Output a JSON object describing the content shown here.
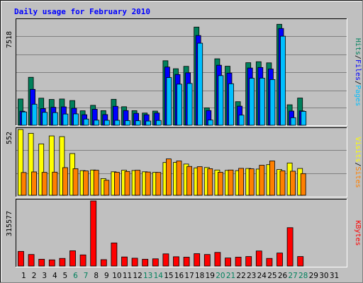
{
  "chart_data": {
    "type": "bar",
    "title": "Daily usage for February 2010",
    "x": [
      "1",
      "2",
      "3",
      "4",
      "5",
      "6",
      "7",
      "8",
      "9",
      "10",
      "11",
      "12",
      "13",
      "14",
      "15",
      "16",
      "17",
      "18",
      "19",
      "20",
      "21",
      "22",
      "23",
      "24",
      "25",
      "26",
      "27",
      "28",
      "29",
      "30",
      "31"
    ],
    "weekend_days": [
      "6",
      "7",
      "13",
      "14",
      "20",
      "21",
      "27",
      "28"
    ],
    "panels": [
      {
        "id": "top",
        "max_label": "7518",
        "ylim": [
          0,
          7518
        ],
        "legend": [
          "Pages",
          "/",
          "Files",
          "/",
          "Hits"
        ],
        "series": [
          {
            "name": "Hits",
            "color": "#00805c",
            "values": [
              1870,
              3420,
              1930,
              1840,
              1870,
              1760,
              1030,
              1420,
              1040,
              1850,
              1320,
              1040,
              870,
              1010,
              4600,
              4030,
              4200,
              7000,
              1240,
              4740,
              4210,
              1680,
              4460,
              4530,
              4450,
              7200,
              1460,
              1940,
              0,
              0,
              0
            ]
          },
          {
            "name": "Files",
            "color": "#0000ff",
            "values": [
              1000,
              2560,
              1190,
              1280,
              1310,
              1210,
              750,
              1140,
              760,
              1350,
              1050,
              850,
              750,
              870,
              4150,
              3620,
              3740,
              6400,
              1050,
              4280,
              3720,
              1360,
              4080,
              4120,
              4010,
              6900,
              1010,
              1020,
              0,
              0,
              0
            ]
          },
          {
            "name": "Pages",
            "color": "#00bfff",
            "values": [
              950,
              1500,
              920,
              900,
              800,
              810,
              440,
              360,
              350,
              350,
              330,
              320,
              300,
              340,
              3400,
              2930,
              2980,
              5850,
              370,
              3540,
              2960,
              720,
              3350,
              3360,
              3260,
              6350,
              540,
              990,
              0,
              0,
              0
            ]
          }
        ]
      },
      {
        "id": "middle",
        "max_label": "552",
        "ylim": [
          0,
          552
        ],
        "legend": [
          "Sites",
          "/",
          "Visits"
        ],
        "series": [
          {
            "name": "Visits",
            "color": "#ffff00",
            "values": [
              552,
              520,
              431,
              498,
              492,
              350,
              207,
              212,
              140,
              197,
              210,
              208,
              197,
              192,
              275,
              276,
              262,
              230,
              233,
              212,
              209,
              207,
              225,
              220,
              257,
              216,
              271,
              225,
              0,
              0,
              0
            ]
          },
          {
            "name": "Sites",
            "color": "#ff8000",
            "values": [
              191,
              196,
              192,
              194,
              232,
              223,
              204,
              210,
              126,
              193,
              200,
              210,
              195,
              192,
              305,
              288,
              242,
              240,
              223,
              193,
              212,
              226,
              222,
              252,
              288,
              205,
              202,
              182,
              0,
              0,
              0
            ]
          }
        ]
      },
      {
        "id": "bottom",
        "max_label": "315577",
        "ylim": [
          0,
          315577
        ],
        "legend": [
          "KBytes"
        ],
        "series": [
          {
            "name": "KBytes",
            "color": "#ff0000",
            "values": [
              71000,
              56000,
              33000,
              30000,
              37000,
              74000,
              54000,
              315577,
              31000,
              112000,
              44000,
              38000,
              33000,
              35000,
              59000,
              45000,
              43000,
              60000,
              56000,
              66000,
              39000,
              43000,
              46000,
              73000,
              37000,
              63000,
              186000,
              46000,
              0,
              0,
              0
            ]
          }
        ]
      }
    ],
    "colors": {
      "background": "#c0c0c0",
      "title": "#0000ff",
      "axis_label": "#000000",
      "weekday_tick": "#000000",
      "weekend_tick": "#00805c",
      "legend_separator": "#000000"
    }
  }
}
